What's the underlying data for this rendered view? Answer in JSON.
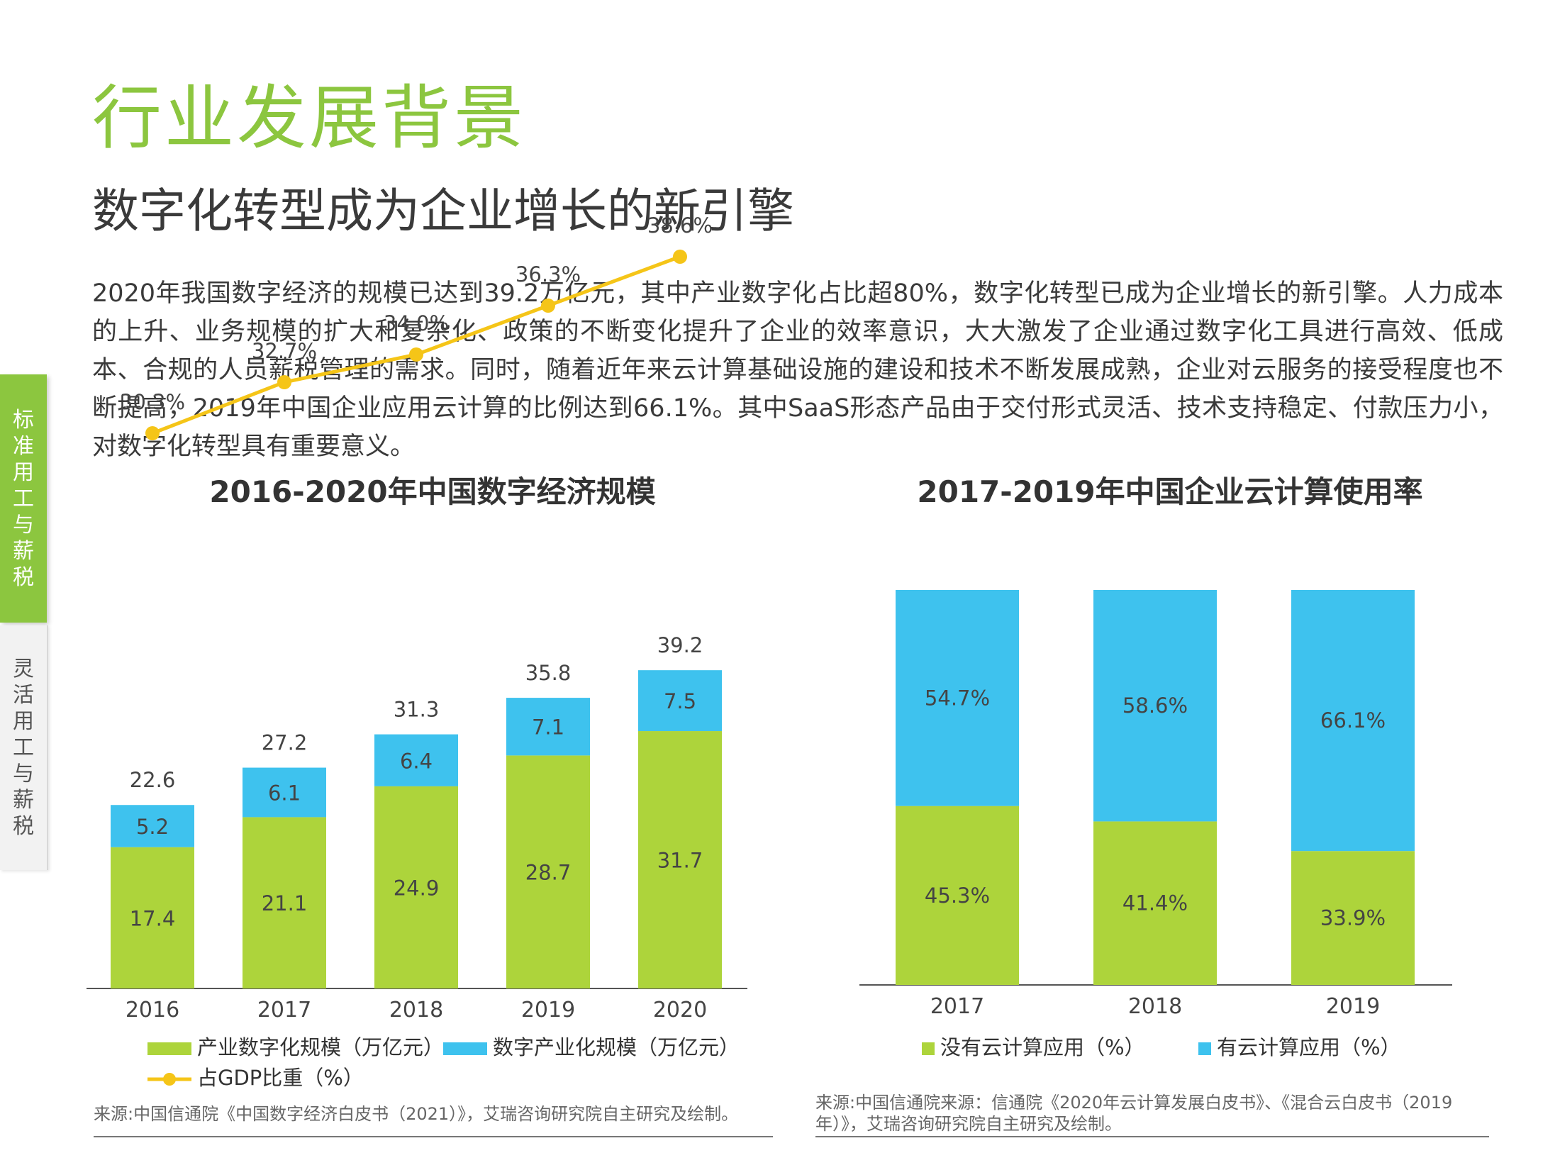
{
  "page": {
    "title": "行业发展背景",
    "subtitle": "数字化转型成为企业增长的新引擎",
    "body": "2020年我国数字经济的规模已达到39.2万亿元，其中产业数字化占比超80%，数字化转型已成为企业增长的新引擎。人力成本的上升、业务规模的扩大和复杂化、政策的不断变化提升了企业的效率意识，大大激发了企业通过数字化工具进行高效、低成本、合规的人员薪税管理的需求。同时，随着近年来云计算基础设施的建设和技术不断发展成熟，企业对云服务的接受程度也不断提高，2019年中国企业应用云计算的比例达到66.1%。其中SaaS形态产品由于交付形式灵活、技术支持稳定、付款压力小，对数字化转型具有重要意义。"
  },
  "sidebar": {
    "tabs": [
      {
        "label": "标准用工与薪税",
        "active": true
      },
      {
        "label": "灵活用工与薪税",
        "active": false
      }
    ]
  },
  "colors": {
    "green": "#add43b",
    "blue": "#3ec2ee",
    "yellow": "#f5c518",
    "title_green": "#8cc63f"
  },
  "chart_data": [
    {
      "type": "bar",
      "stacked": true,
      "title": "2016-2020年中国数字经济规模",
      "categories": [
        "2016",
        "2017",
        "2018",
        "2019",
        "2020"
      ],
      "series": [
        {
          "name": "产业数字化规模（万亿元）",
          "values": [
            17.4,
            21.1,
            24.9,
            28.7,
            31.7
          ],
          "color": "#add43b"
        },
        {
          "name": "数字产业化规模（万亿元）",
          "values": [
            5.2,
            6.1,
            6.4,
            7.1,
            7.5
          ],
          "color": "#3ec2ee"
        }
      ],
      "totals": [
        22.6,
        27.2,
        31.3,
        35.8,
        39.2
      ],
      "line_series": {
        "name": "占GDP比重（%）",
        "values": [
          30.3,
          32.7,
          34.0,
          36.3,
          38.6
        ],
        "labels": [
          "30.3%",
          "32.7%",
          "34.0%",
          "36.3%",
          "38.6%"
        ],
        "color": "#f5c518"
      },
      "legend": "bottom",
      "source": "来源:中国信通院《中国数字经济白皮书（2021）》，艾瑞咨询研究院自主研究及绘制。"
    },
    {
      "type": "bar",
      "stacked": true,
      "percent": true,
      "title": "2017-2019年中国企业云计算使用率",
      "categories": [
        "2017",
        "2018",
        "2019"
      ],
      "series": [
        {
          "name": "没有云计算应用（%）",
          "values": [
            45.3,
            41.4,
            33.9
          ],
          "labels": [
            "45.3%",
            "41.4%",
            "33.9%"
          ],
          "color": "#add43b"
        },
        {
          "name": "有云计算应用（%）",
          "values": [
            54.7,
            58.6,
            66.1
          ],
          "labels": [
            "54.7%",
            "58.6%",
            "66.1%"
          ],
          "color": "#3ec2ee"
        }
      ],
      "legend": "bottom",
      "source": "来源:中国信通院来源：信通院《2020年云计算发展白皮书》、《混合云白皮书（2019年）》，艾瑞咨询研究院自主研究及绘制。"
    }
  ]
}
